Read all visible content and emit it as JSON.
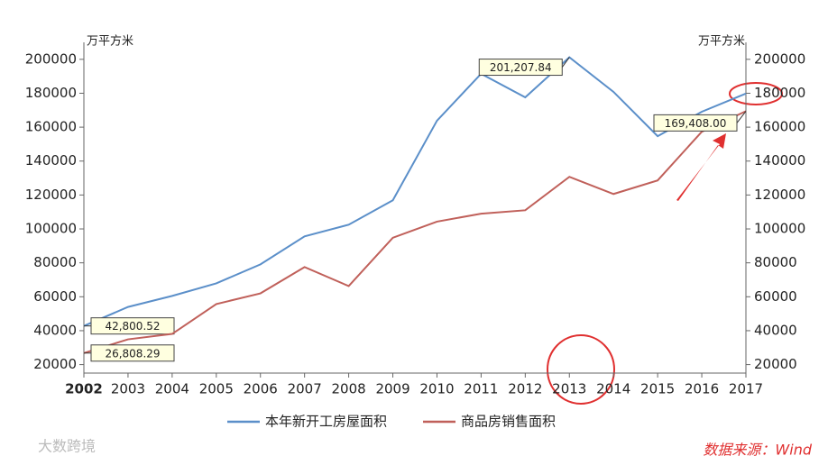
{
  "chart_data": {
    "type": "line",
    "y_label": "万平方米",
    "y2_label": "万平方米",
    "x": [
      2002,
      2003,
      2004,
      2005,
      2006,
      2007,
      2008,
      2009,
      2010,
      2011,
      2012,
      2013,
      2014,
      2015,
      2016,
      2017
    ],
    "xlim": [
      2002,
      2017
    ],
    "xticks": [
      2002,
      2003,
      2004,
      2005,
      2006,
      2007,
      2008,
      2009,
      2010,
      2011,
      2012,
      2013,
      2014,
      2015,
      2016,
      2017
    ],
    "ylim": [
      15000,
      210000
    ],
    "yticks": [
      20000,
      40000,
      60000,
      80000,
      100000,
      120000,
      140000,
      160000,
      180000,
      200000
    ],
    "y2lim": [
      15000,
      210000
    ],
    "y2ticks": [
      20000,
      40000,
      60000,
      80000,
      100000,
      120000,
      140000,
      160000,
      180000,
      200000
    ],
    "legend": "bottom",
    "series": [
      {
        "name": "本年新开工房屋面积",
        "color": "#5b8fc9",
        "values": [
          42800.52,
          54000,
          60500,
          67900,
          79100,
          95600,
          102500,
          116900,
          163800,
          191500,
          177600,
          201207.84,
          180800,
          154700,
          169100,
          179800
        ],
        "value_labels": [
          "42,800.52",
          null,
          null,
          null,
          null,
          null,
          null,
          null,
          null,
          null,
          null,
          "201,207.84",
          null,
          null,
          null,
          null
        ]
      },
      {
        "name": "商品房销售面积",
        "color": "#c0605a",
        "values": [
          26808.29,
          34900,
          38100,
          55700,
          62000,
          77500,
          66300,
          94800,
          104300,
          109000,
          111000,
          130700,
          120600,
          128600,
          157300,
          169408
        ],
        "value_labels": [
          "26,808.29",
          null,
          null,
          null,
          null,
          null,
          null,
          null,
          null,
          null,
          null,
          null,
          null,
          null,
          null,
          "169,408.00"
        ]
      }
    ],
    "source": "数据来源：Wind",
    "watermark": "大数跨境"
  }
}
